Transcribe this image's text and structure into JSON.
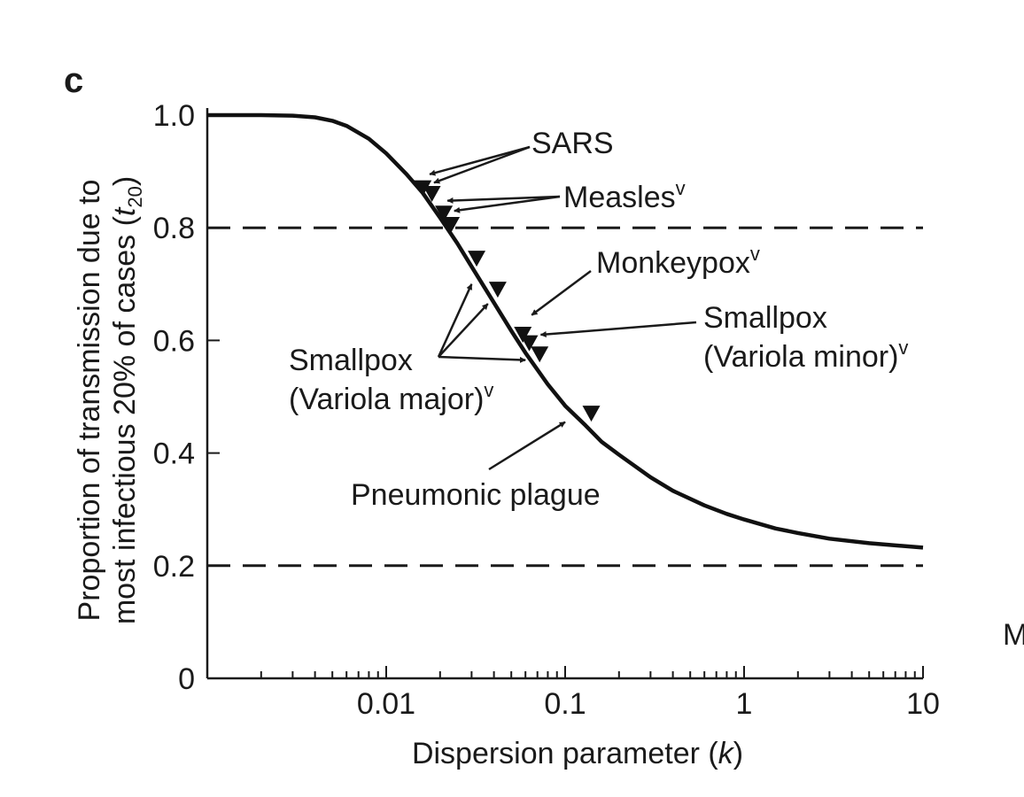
{
  "panel_label": "c",
  "edge_text": "M",
  "chart_data": {
    "type": "line",
    "title": "",
    "xlabel": "Dispersion parameter (k)",
    "xlabel_parts": {
      "text": "Dispersion parameter (",
      "var": "k",
      "close": ")"
    },
    "ylabel_line1": "Proportion of transmission due to",
    "ylabel_line2": {
      "text": "most infectious 20% of cases (",
      "var": "t",
      "sub": "20",
      "close": ")"
    },
    "x_scale": "log",
    "xlim": [
      0.001,
      10
    ],
    "ylim": [
      0,
      1.0
    ],
    "x_ticks": [
      {
        "value": 0.01,
        "label": "0.01"
      },
      {
        "value": 0.1,
        "label": "0.1"
      },
      {
        "value": 1,
        "label": "1"
      },
      {
        "value": 10,
        "label": "10"
      }
    ],
    "y_ticks": [
      {
        "value": 0,
        "label": "0"
      },
      {
        "value": 0.2,
        "label": "0.2"
      },
      {
        "value": 0.4,
        "label": "0.4"
      },
      {
        "value": 0.6,
        "label": "0.6"
      },
      {
        "value": 0.8,
        "label": "0.8"
      },
      {
        "value": 1.0,
        "label": "1.0"
      }
    ],
    "reference_lines": [
      0.8,
      0.2
    ],
    "series": [
      {
        "x": [
          0.001,
          0.002,
          0.003,
          0.004,
          0.005,
          0.006,
          0.008,
          0.01,
          0.013,
          0.016,
          0.02,
          0.025,
          0.03,
          0.04,
          0.05,
          0.06,
          0.08,
          0.1,
          0.13,
          0.16,
          0.2,
          0.3,
          0.4,
          0.6,
          0.8,
          1,
          1.5,
          2,
          3,
          5,
          10
        ],
        "y": [
          1.0,
          1.0,
          0.999,
          0.996,
          0.99,
          0.981,
          0.958,
          0.932,
          0.895,
          0.862,
          0.818,
          0.772,
          0.731,
          0.667,
          0.617,
          0.578,
          0.522,
          0.484,
          0.449,
          0.42,
          0.397,
          0.357,
          0.333,
          0.307,
          0.292,
          0.282,
          0.266,
          0.258,
          0.248,
          0.24,
          0.232
        ]
      }
    ],
    "markers": [
      {
        "disease": "SARS",
        "x": 0.016,
        "y": 0.87
      },
      {
        "disease": "SARS",
        "x": 0.018,
        "y": 0.86
      },
      {
        "disease": "Measles",
        "x": 0.021,
        "y": 0.825
      },
      {
        "disease": "Measles",
        "x": 0.023,
        "y": 0.805
      },
      {
        "disease": "Smallpox (Variola major)",
        "x": 0.032,
        "y": 0.745
      },
      {
        "disease": "Smallpox (Variola major)",
        "x": 0.042,
        "y": 0.69
      },
      {
        "disease": "Monkeypox",
        "x": 0.058,
        "y": 0.61
      },
      {
        "disease": "Smallpox (Variola major)",
        "x": 0.063,
        "y": 0.595
      },
      {
        "disease": "Smallpox (Variola minor)",
        "x": 0.072,
        "y": 0.575
      },
      {
        "disease": "Pneumonic plague",
        "x": 0.14,
        "y": 0.47
      }
    ],
    "annotations": [
      {
        "lines": [
          {
            "text": "SARS"
          }
        ],
        "targets": [
          [
            0.0175,
            0.895
          ],
          [
            0.0185,
            0.88
          ]
        ]
      },
      {
        "lines": [
          {
            "text": "Measles",
            "sup": "v"
          }
        ],
        "targets": [
          [
            0.022,
            0.848
          ],
          [
            0.024,
            0.83
          ]
        ]
      },
      {
        "lines": [
          {
            "text": "Monkeypox",
            "sup": "v"
          }
        ],
        "targets": [
          [
            0.065,
            0.645
          ]
        ]
      },
      {
        "lines": [
          {
            "text": "Smallpox"
          },
          {
            "text": "(Variola minor)",
            "sup": "v"
          }
        ],
        "targets": [
          [
            0.073,
            0.61
          ]
        ]
      },
      {
        "lines": [
          {
            "text": "Smallpox"
          },
          {
            "text": "(Variola major)",
            "sup": "v"
          }
        ],
        "targets": [
          [
            0.03,
            0.7
          ],
          [
            0.037,
            0.665
          ],
          [
            0.06,
            0.565
          ]
        ]
      },
      {
        "lines": [
          {
            "text": "Pneumonic plague"
          }
        ],
        "targets": [
          [
            0.1,
            0.455
          ]
        ]
      }
    ]
  }
}
